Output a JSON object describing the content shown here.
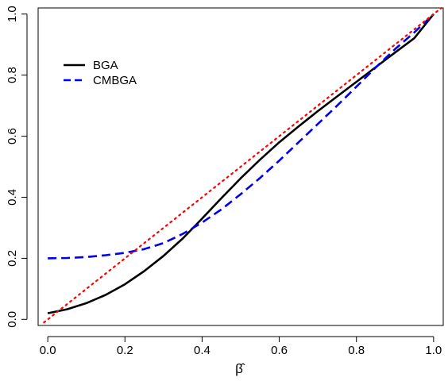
{
  "chart_data": {
    "type": "line",
    "title": "",
    "xlabel": "β̂",
    "ylabel": "",
    "xlim": [
      -0.025,
      1.025
    ],
    "ylim": [
      -0.02,
      1.02
    ],
    "x_ticks": [
      "0.0",
      "0.2",
      "0.4",
      "0.6",
      "0.8",
      "1.0"
    ],
    "y_ticks": [
      "0.0",
      "0.2",
      "0.4",
      "0.6",
      "0.8",
      "1.0"
    ],
    "grid": false,
    "legend_position": "top-left",
    "series": [
      {
        "name": "BGA",
        "color": "#000000",
        "dash": "solid",
        "x": [
          0.0,
          0.05,
          0.1,
          0.15,
          0.2,
          0.25,
          0.3,
          0.35,
          0.4,
          0.45,
          0.5,
          0.55,
          0.6,
          0.65,
          0.7,
          0.75,
          0.8,
          0.85,
          0.9,
          0.95,
          1.0
        ],
        "y": [
          0.02,
          0.033,
          0.053,
          0.08,
          0.115,
          0.158,
          0.208,
          0.265,
          0.33,
          0.397,
          0.462,
          0.523,
          0.58,
          0.632,
          0.682,
          0.73,
          0.778,
          0.826,
          0.874,
          0.921,
          1.0
        ]
      },
      {
        "name": "CMBGA",
        "color": "#0000ee",
        "dash": "dashed",
        "x": [
          0.0,
          0.05,
          0.1,
          0.15,
          0.2,
          0.25,
          0.3,
          0.35,
          0.4,
          0.45,
          0.5,
          0.55,
          0.6,
          0.65,
          0.7,
          0.75,
          0.8,
          0.85,
          0.9,
          0.95,
          1.0
        ],
        "y": [
          0.2,
          0.201,
          0.204,
          0.21,
          0.218,
          0.23,
          0.25,
          0.28,
          0.317,
          0.36,
          0.41,
          0.463,
          0.52,
          0.58,
          0.64,
          0.7,
          0.762,
          0.825,
          0.885,
          0.94,
          1.0
        ]
      },
      {
        "name": "",
        "color": "#ff0000",
        "dash": "dotted",
        "x": [
          -0.01,
          1.02
        ],
        "y": [
          -0.01,
          1.02
        ]
      }
    ]
  }
}
